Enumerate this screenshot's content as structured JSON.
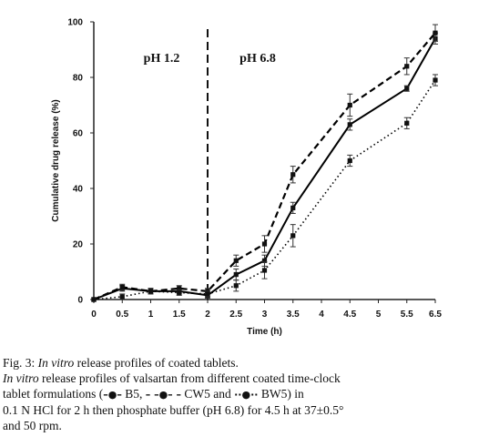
{
  "chart_data": {
    "type": "line",
    "title": "",
    "xlabel": "Time (h)",
    "ylabel": "Cumulative drug release (%)",
    "xlim": [
      0,
      6.5
    ],
    "ylim": [
      0,
      100
    ],
    "x_ticks": [
      "0",
      "0.5",
      "1",
      "1.5",
      "2",
      "2.5",
      "3",
      "3.5",
      "4",
      "4.5",
      "5",
      "5.5",
      "6.5"
    ],
    "y_ticks": [
      "0",
      "20",
      "40",
      "60",
      "80",
      "100"
    ],
    "grid": false,
    "legend": "none",
    "regions": [
      {
        "label": "pH 1.2",
        "x_from": 0,
        "x_to": 2
      },
      {
        "label": "pH 6.8",
        "x_from": 2,
        "x_to": 6.5
      }
    ],
    "divider_x": 2,
    "x": [
      0,
      0.5,
      1,
      1.5,
      2,
      2.5,
      3,
      3.5,
      4,
      4.5,
      5.5,
      6.5
    ],
    "series": [
      {
        "name": "B5",
        "style": "solid",
        "color": "#000000",
        "values": [
          0,
          4,
          3,
          3,
          1.5,
          9,
          14,
          33,
          63,
          76,
          94
        ],
        "x": [
          0,
          0.5,
          1,
          1.5,
          2,
          2.5,
          3,
          3.5,
          4.5,
          5.5,
          6.5
        ],
        "errors": [
          0,
          1,
          1,
          1,
          1,
          2,
          2,
          2,
          2,
          1,
          2
        ]
      },
      {
        "name": "CW5",
        "style": "dashed",
        "color": "#000000",
        "values": [
          0,
          4.5,
          3,
          4,
          3,
          14,
          20,
          45,
          70,
          84,
          96
        ],
        "x": [
          0,
          0.5,
          1,
          1.5,
          2,
          2.5,
          3,
          3.5,
          4.5,
          5.5,
          6.5
        ],
        "errors": [
          0,
          1,
          1,
          1,
          1,
          2,
          3,
          3,
          4,
          3,
          3
        ]
      },
      {
        "name": "BW5",
        "style": "dotted",
        "color": "#000000",
        "values": [
          0,
          1,
          3,
          2.5,
          2,
          5,
          10.5,
          23,
          50,
          63.5,
          79
        ],
        "x": [
          0,
          0.5,
          1,
          1.5,
          2,
          2.5,
          3,
          3.5,
          4.5,
          5.5,
          6.5
        ],
        "errors": [
          0,
          1,
          1,
          1,
          1,
          2,
          3,
          4,
          2,
          2,
          2
        ]
      }
    ]
  },
  "caption": {
    "fig_label": "Fig. 3:",
    "fig_title_italic": "In vitro",
    "fig_title_rest": " release profiles of coated tablets.",
    "body_italic": "In vitro",
    "body_line1_rest": " release profiles of valsartan from different coated time-clock",
    "body_line2_start": "tablet formulations (",
    "legend_b5_sample": "–●–",
    "legend_b5_name": " B5, ",
    "legend_cw5_sample": "– –●– –",
    "legend_cw5_name": " CW5 and ",
    "legend_bw5_sample": "··●··",
    "legend_bw5_name": " BW5) in",
    "body_line3": "0.1 N HCl for 2 h then phosphate buffer (pH 6.8) for 4.5 h at 37±0.5°",
    "body_line4": "and 50 rpm."
  }
}
